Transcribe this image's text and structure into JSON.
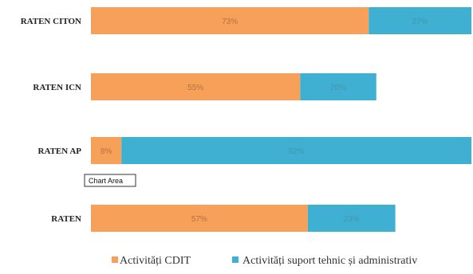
{
  "chart_data": {
    "type": "bar",
    "orientation": "horizontal",
    "stacked": true,
    "categories": [
      "RATEN CITON",
      "RATEN ICN",
      "RATEN AP",
      "RATEN"
    ],
    "series": [
      {
        "name": "Activități CDIT",
        "values": [
          73,
          55,
          8,
          57
        ],
        "labels": [
          "73%",
          "55%",
          "8%",
          "57%"
        ],
        "color": "#f7a05a"
      },
      {
        "name": "Activități suport tehnic și administrativ",
        "values": [
          27,
          20,
          92,
          23
        ],
        "labels": [
          "27%",
          "20%",
          "92%",
          "23%"
        ],
        "color": "#3fb0d2"
      }
    ],
    "title": "",
    "xlabel": "",
    "ylabel": "",
    "xlim": [
      0,
      100
    ],
    "grid": false,
    "legend_position": "bottom"
  },
  "tooltip": {
    "text": "Chart Area"
  }
}
